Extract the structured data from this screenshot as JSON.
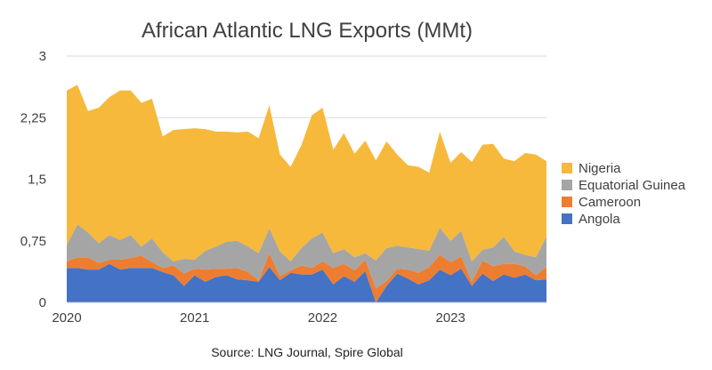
{
  "chart_data": {
    "type": "area",
    "stacked": true,
    "title": "African Atlantic LNG Exports (MMt)",
    "source": "Source: LNG Journal, Spire Global",
    "ylim": [
      0,
      3
    ],
    "yticks": [
      {
        "value": 0,
        "label": "0"
      },
      {
        "value": 0.75,
        "label": "0,75"
      },
      {
        "value": 1.5,
        "label": "1,5"
      },
      {
        "value": 2.25,
        "label": "2,25"
      },
      {
        "value": 3,
        "label": "3"
      }
    ],
    "xticks": [
      {
        "x": 0,
        "label": "2020"
      },
      {
        "x": 12,
        "label": "2021"
      },
      {
        "x": 24,
        "label": "2022"
      },
      {
        "x": 36,
        "label": "2023"
      }
    ],
    "xlim": [
      0,
      45
    ],
    "grid": true,
    "legend_position": "right",
    "x": [
      0,
      1,
      2,
      3,
      4,
      5,
      6,
      7,
      8,
      9,
      10,
      11,
      12,
      13,
      14,
      15,
      16,
      17,
      18,
      19,
      20,
      21,
      22,
      23,
      24,
      25,
      26,
      27,
      28,
      29,
      30,
      31,
      32,
      33,
      34,
      35,
      36,
      37,
      38,
      39,
      40,
      41,
      42,
      43,
      44,
      45
    ],
    "series": [
      {
        "name": "Angola",
        "color": "#4472C4",
        "values": [
          0.42,
          0.42,
          0.4,
          0.4,
          0.47,
          0.4,
          0.42,
          0.42,
          0.42,
          0.37,
          0.33,
          0.2,
          0.33,
          0.25,
          0.31,
          0.33,
          0.28,
          0.27,
          0.25,
          0.43,
          0.27,
          0.36,
          0.34,
          0.34,
          0.4,
          0.22,
          0.32,
          0.25,
          0.38,
          0.0,
          0.2,
          0.35,
          0.29,
          0.22,
          0.27,
          0.4,
          0.33,
          0.41,
          0.2,
          0.35,
          0.26,
          0.34,
          0.3,
          0.34,
          0.27,
          0.28
        ]
      },
      {
        "name": "Cameroon",
        "color": "#ED7D31",
        "values": [
          0.08,
          0.13,
          0.15,
          0.08,
          0.05,
          0.12,
          0.12,
          0.15,
          0.07,
          0.05,
          0.12,
          0.15,
          0.08,
          0.15,
          0.1,
          0.08,
          0.14,
          0.1,
          0.02,
          0.17,
          0.05,
          0.03,
          0.11,
          0.08,
          0.1,
          0.2,
          0.15,
          0.14,
          0.14,
          0.17,
          0.06,
          0.06,
          0.11,
          0.14,
          0.16,
          0.18,
          0.16,
          0.15,
          0.05,
          0.16,
          0.18,
          0.13,
          0.17,
          0.1,
          0.06,
          0.15
        ]
      },
      {
        "name": "Equatorial Guinea",
        "color": "#A5A5A5",
        "values": [
          0.2,
          0.4,
          0.3,
          0.24,
          0.3,
          0.24,
          0.28,
          0.11,
          0.29,
          0.19,
          0.05,
          0.18,
          0.11,
          0.23,
          0.27,
          0.33,
          0.33,
          0.31,
          0.33,
          0.3,
          0.3,
          0.11,
          0.21,
          0.36,
          0.35,
          0.18,
          0.18,
          0.16,
          0.08,
          0.34,
          0.4,
          0.28,
          0.27,
          0.29,
          0.2,
          0.33,
          0.26,
          0.31,
          0.25,
          0.13,
          0.23,
          0.33,
          0.15,
          0.14,
          0.22,
          0.37
        ]
      },
      {
        "name": "Nigeria",
        "color": "#F6B93B",
        "values": [
          1.88,
          1.7,
          1.48,
          1.65,
          1.68,
          1.82,
          1.76,
          1.75,
          1.7,
          1.41,
          1.6,
          1.58,
          1.6,
          1.48,
          1.4,
          1.34,
          1.32,
          1.4,
          1.4,
          1.5,
          1.18,
          1.15,
          1.25,
          1.5,
          1.52,
          1.26,
          1.41,
          1.26,
          1.37,
          1.22,
          1.3,
          1.11,
          1.0,
          1.0,
          0.95,
          1.17,
          0.95,
          0.96,
          1.21,
          1.28,
          1.26,
          0.95,
          1.1,
          1.24,
          1.25,
          0.92
        ]
      }
    ],
    "legend_order": [
      "Nigeria",
      "Equatorial Guinea",
      "Cameroon",
      "Angola"
    ]
  }
}
